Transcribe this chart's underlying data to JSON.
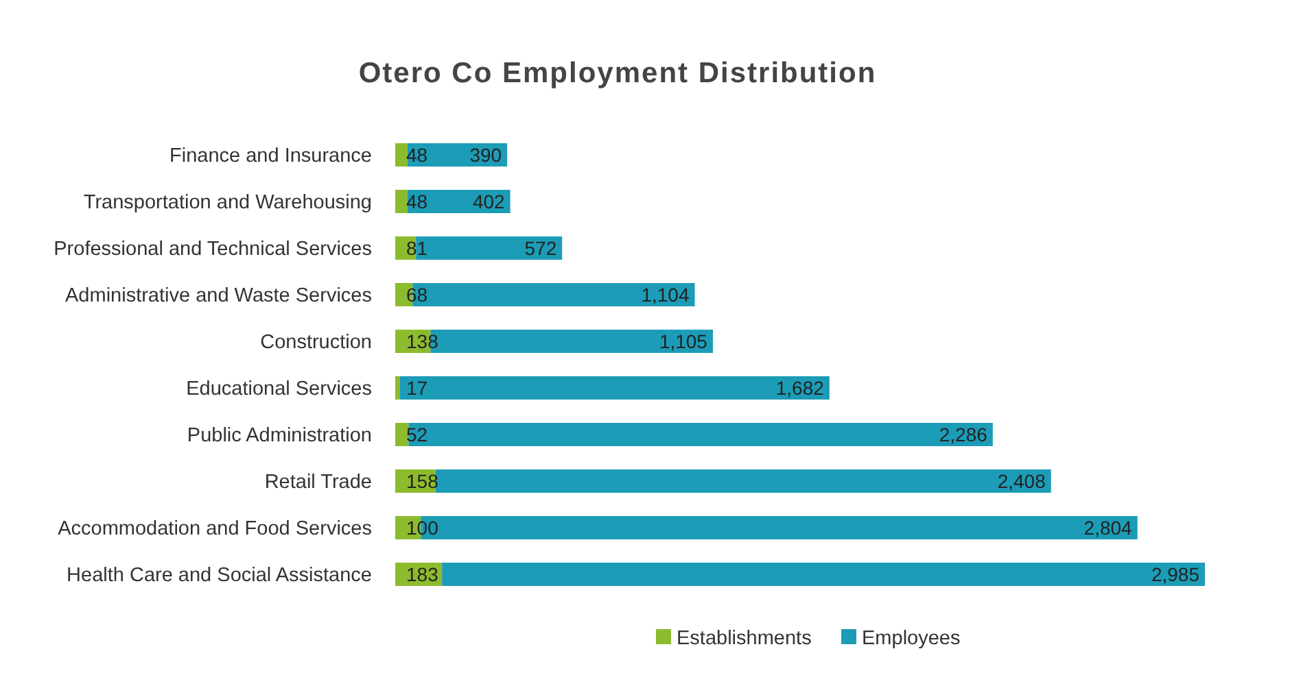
{
  "chart_data": {
    "type": "bar",
    "orientation": "horizontal",
    "stacked": true,
    "title": "Otero Co Employment Distribution",
    "categories": [
      "Finance and Insurance",
      "Transportation and Warehousing",
      "Professional and Technical Services",
      "Administrative and Waste Services",
      "Construction",
      "Educational Services",
      "Public Administration",
      "Retail Trade",
      "Accommodation and Food Services",
      "Health Care and Social Assistance"
    ],
    "series": [
      {
        "name": "Establishments",
        "color": "#8dbb2e",
        "values": [
          48,
          48,
          81,
          68,
          138,
          17,
          52,
          158,
          100,
          183
        ],
        "value_labels": [
          "48",
          "48",
          "81",
          "68",
          "138",
          "17",
          "52",
          "158",
          "100",
          "183"
        ]
      },
      {
        "name": "Employees",
        "color": "#1c9cb6",
        "values": [
          390,
          402,
          572,
          1104,
          1105,
          1682,
          2286,
          2408,
          2804,
          2985
        ],
        "value_labels": [
          "390",
          "402",
          "572",
          "1,104",
          "1,105",
          "1,682",
          "2,286",
          "2,408",
          "2,804",
          "2,985"
        ]
      }
    ],
    "legend": "bottom",
    "grid": false
  }
}
